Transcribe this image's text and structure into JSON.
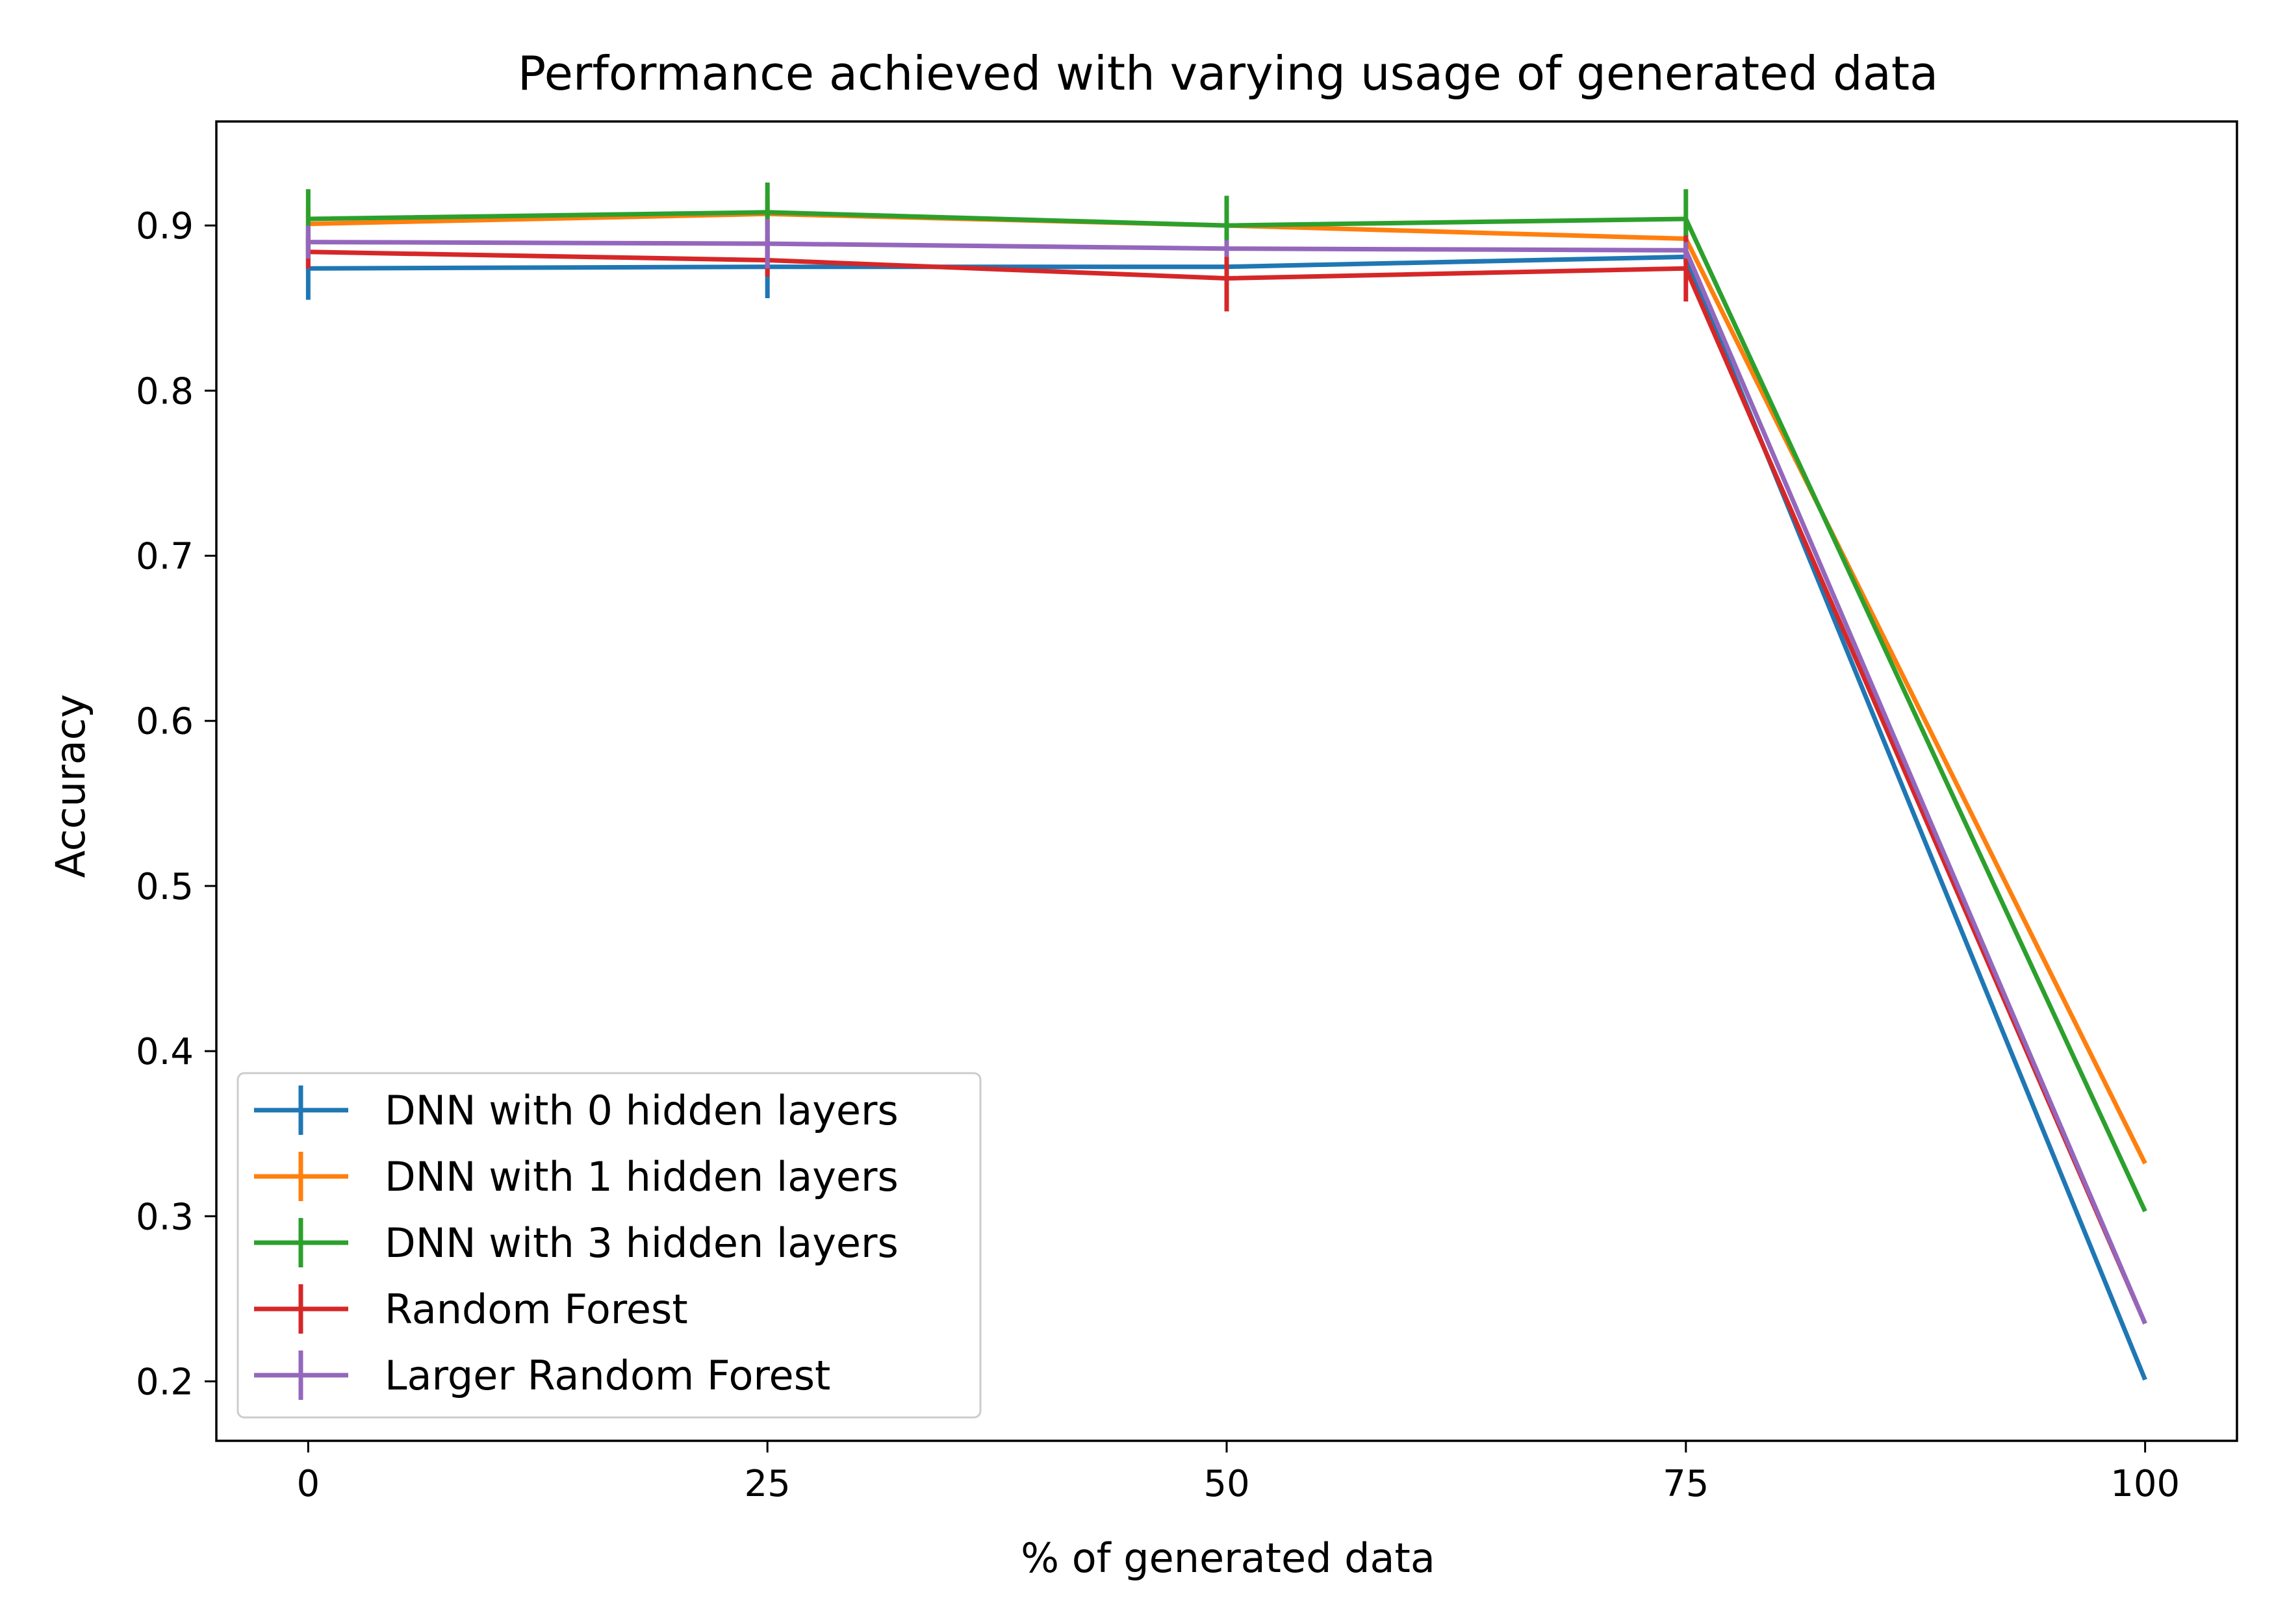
{
  "chart_data": {
    "type": "line",
    "title": "Performance achieved with varying usage of generated data",
    "xlabel": "% of generated data",
    "ylabel": "Accuracy",
    "x": [
      0,
      25,
      50,
      75,
      100
    ],
    "xlim": [
      -5,
      105
    ],
    "ylim": [
      0.164,
      0.963
    ],
    "xticks": [
      0,
      25,
      50,
      75,
      100
    ],
    "yticks": [
      0.2,
      0.3,
      0.4,
      0.5,
      0.6,
      0.7,
      0.8,
      0.9
    ],
    "grid": false,
    "legend_position": "lower-left",
    "series": [
      {
        "name": "DNN with 0 hidden layers",
        "color": "#1f77b4",
        "values": [
          0.874,
          0.875,
          0.875,
          0.881,
          0.201
        ],
        "errors": [
          0.019,
          0.019,
          0.004,
          0.004,
          0.0
        ]
      },
      {
        "name": "DNN with 1 hidden layers",
        "color": "#ff7f0e",
        "values": [
          0.901,
          0.907,
          0.9,
          0.892,
          0.332
        ],
        "errors": [
          0.01,
          0.01,
          0.01,
          0.01,
          0.0
        ]
      },
      {
        "name": "DNN with 3 hidden layers",
        "color": "#2ca02c",
        "values": [
          0.904,
          0.908,
          0.9,
          0.904,
          0.303
        ],
        "errors": [
          0.018,
          0.018,
          0.018,
          0.018,
          0.0
        ]
      },
      {
        "name": "Random Forest",
        "color": "#d62728",
        "values": [
          0.884,
          0.879,
          0.868,
          0.874,
          0.235
        ],
        "errors": [
          0.01,
          0.01,
          0.02,
          0.02,
          0.0
        ]
      },
      {
        "name": "Larger Random Forest",
        "color": "#9467bd",
        "values": [
          0.89,
          0.889,
          0.886,
          0.885,
          0.235
        ],
        "errors": [
          0.01,
          0.015,
          0.005,
          0.005,
          0.0
        ]
      }
    ]
  }
}
